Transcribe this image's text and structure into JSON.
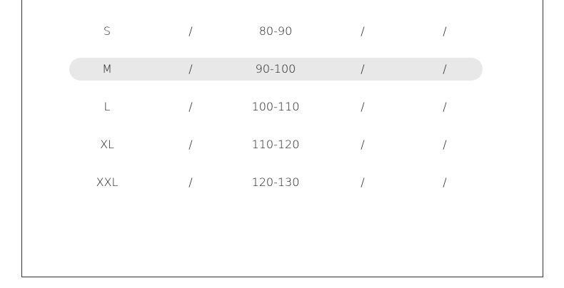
{
  "highlight_color": "#e8e8e8",
  "highlighted_row": "M",
  "rows": [
    [
      "S",
      "/",
      "80-90",
      "/",
      "/"
    ],
    [
      "M",
      "/",
      "90-100",
      "/",
      "/"
    ],
    [
      "L",
      "/",
      "100-110",
      "/",
      "/"
    ],
    [
      "XL",
      "/",
      "110-120",
      "/",
      "/"
    ],
    [
      "XXL",
      "/",
      "120-130",
      "/",
      "/"
    ]
  ]
}
